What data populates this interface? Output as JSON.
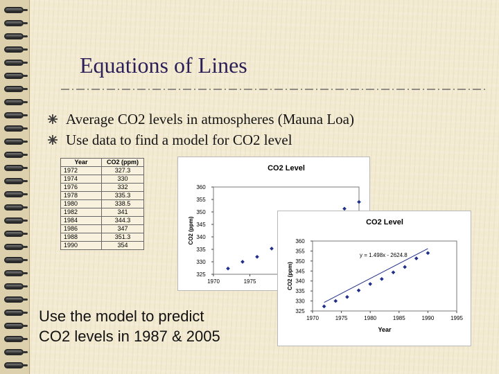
{
  "slide": {
    "title": "Equations of Lines",
    "bullets": [
      "Average CO2 levels in atmospheres (Mauna Loa)",
      "Use data to find a model for CO2 level"
    ],
    "predict_lines": [
      "Use the model to predict",
      "CO2 levels in 1987 & 2005"
    ]
  },
  "table": {
    "headers": [
      "Year",
      "CO2 (ppm)"
    ],
    "rows": [
      [
        "1972",
        "327.3"
      ],
      [
        "1974",
        "330"
      ],
      [
        "1976",
        "332"
      ],
      [
        "1978",
        "335.3"
      ],
      [
        "1980",
        "338.5"
      ],
      [
        "1982",
        "341"
      ],
      [
        "1984",
        "344.3"
      ],
      [
        "1986",
        "347"
      ],
      [
        "1988",
        "351.3"
      ],
      [
        "1990",
        "354"
      ]
    ]
  },
  "colors": {
    "title": "#2b1f57",
    "points": "#1f2f8a",
    "trendline": "#1f2f8a"
  },
  "icons": {
    "bullet": "cross-bullet-icon",
    "binding": "spiral-binding-icon"
  },
  "chart_data": [
    {
      "type": "scatter",
      "title": "CO2 Level",
      "xlabel": "",
      "ylabel": "CO2 (ppm)",
      "xlim": [
        1970,
        1990
      ],
      "ylim": [
        325,
        360
      ],
      "xticks": [
        "1970",
        "1975",
        "1980"
      ],
      "yticks": [
        "325",
        "330",
        "335",
        "340",
        "345",
        "350",
        "355",
        "360"
      ],
      "x": [
        1972,
        1974,
        1976,
        1978,
        1980,
        1982,
        1984,
        1986,
        1988,
        1990
      ],
      "y": [
        327.3,
        330,
        332,
        335.3,
        338.5,
        341,
        344.3,
        347,
        351.3,
        354
      ]
    },
    {
      "type": "scatter",
      "title": "CO2 Level",
      "xlabel": "Year",
      "ylabel": "CO2 (ppm)",
      "xlim": [
        1970,
        1995
      ],
      "ylim": [
        325,
        360
      ],
      "xticks": [
        "1970",
        "1975",
        "1980",
        "1985",
        "1990",
        "1995"
      ],
      "yticks": [
        "325",
        "330",
        "335",
        "340",
        "345",
        "350",
        "355",
        "360"
      ],
      "x": [
        1972,
        1974,
        1976,
        1978,
        1980,
        1982,
        1984,
        1986,
        1988,
        1990
      ],
      "y": [
        327.3,
        330,
        332,
        335.3,
        338.5,
        341,
        344.3,
        347,
        351.3,
        354
      ],
      "trendline": {
        "slope": 1.498,
        "intercept": -2624.8,
        "x_range": [
          1972,
          1990
        ]
      },
      "annotation": "y = 1.498x - 2624.8"
    }
  ]
}
